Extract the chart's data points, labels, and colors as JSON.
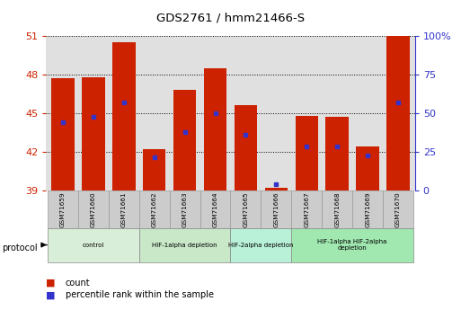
{
  "title": "GDS2761 / hmm21466-S",
  "samples": [
    "GSM71659",
    "GSM71660",
    "GSM71661",
    "GSM71662",
    "GSM71663",
    "GSM71664",
    "GSM71665",
    "GSM71666",
    "GSM71667",
    "GSM71668",
    "GSM71669",
    "GSM71670"
  ],
  "bar_tops": [
    47.7,
    47.8,
    50.5,
    42.2,
    46.8,
    48.5,
    45.6,
    39.2,
    44.8,
    44.7,
    42.4,
    51.0
  ],
  "bar_bottom": 39.0,
  "percentile_values": [
    44.3,
    44.7,
    45.8,
    41.6,
    43.5,
    45.0,
    43.3,
    39.5,
    42.4,
    42.4,
    41.7,
    45.8
  ],
  "ylim": [
    39,
    51
  ],
  "yticks_left": [
    39,
    42,
    45,
    48,
    51
  ],
  "yticks_right": [
    0,
    25,
    50,
    75,
    100
  ],
  "bar_color": "#cc2200",
  "dot_color": "#3333cc",
  "protocol_groups": [
    {
      "label": "control",
      "indices": [
        0,
        1,
        2
      ],
      "color": "#d8eed8"
    },
    {
      "label": "HIF-1alpha depletion",
      "indices": [
        3,
        4,
        5
      ],
      "color": "#c8e8c8"
    },
    {
      "label": "HIF-2alpha depletion",
      "indices": [
        6,
        7
      ],
      "color": "#b8f0d8"
    },
    {
      "label": "HIF-1alpha HIF-2alpha\ndepletion",
      "indices": [
        8,
        9,
        10,
        11
      ],
      "color": "#a0e8b0"
    }
  ],
  "legend_count_label": "count",
  "legend_pct_label": "percentile rank within the sample",
  "protocol_label": "protocol",
  "background_color": "#ffffff",
  "plot_bg_color": "#e0e0e0",
  "grid_color": "#000000",
  "left_axis_color": "#cc2200",
  "right_axis_color": "#3333cc",
  "bar_width": 0.75,
  "xlabel_box_color": "#cccccc",
  "xlabel_box_edge": "#999999"
}
